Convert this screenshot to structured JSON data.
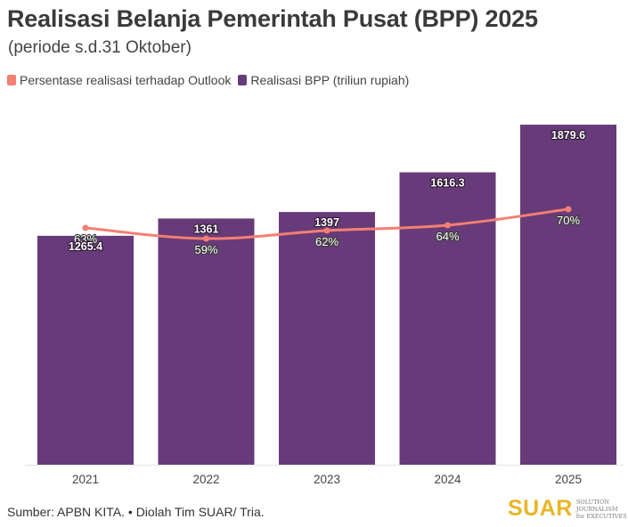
{
  "header": {
    "title": "Realisasi Belanja Pemerintah Pusat (BPP) 2025",
    "subtitle": "(periode s.d.31 Oktober)"
  },
  "legend": {
    "line_label": "Persentase realisasi terhadap Outlook",
    "bar_label": "Realisasi BPP (triliun rupiah)"
  },
  "footer": {
    "source": "Sumber: APBN KITA. • Diolah Tim SUAR/ Tria.",
    "logo_text": "SUAR",
    "logo_tag_line1": "SOLUTION JOURNALISM",
    "logo_tag_line2": "for EXECUTIVES"
  },
  "colors": {
    "bar": "#673b79",
    "line": "#f57f72",
    "logo": "#e8b628"
  },
  "chart_data": {
    "type": "bar",
    "categories": [
      "2021",
      "2022",
      "2023",
      "2024",
      "2025"
    ],
    "series": [
      {
        "name": "Realisasi BPP (triliun rupiah)",
        "type": "bar",
        "values": [
          1265.4,
          1361,
          1397,
          1616.3,
          1879.6
        ],
        "labels": [
          "1265.4",
          "1361",
          "1397",
          "1616.3",
          "1879.6"
        ]
      },
      {
        "name": "Persentase realisasi terhadap Outlook",
        "type": "line",
        "values": [
          63,
          59,
          62,
          64,
          70
        ],
        "labels": [
          "63%",
          "59%",
          "62%",
          "64%",
          "70%"
        ]
      }
    ],
    "title": "Realisasi Belanja Pemerintah Pusat (BPP) 2025",
    "subtitle": "(periode s.d.31 Oktober)",
    "legend_position": "top-left",
    "grid": false
  }
}
